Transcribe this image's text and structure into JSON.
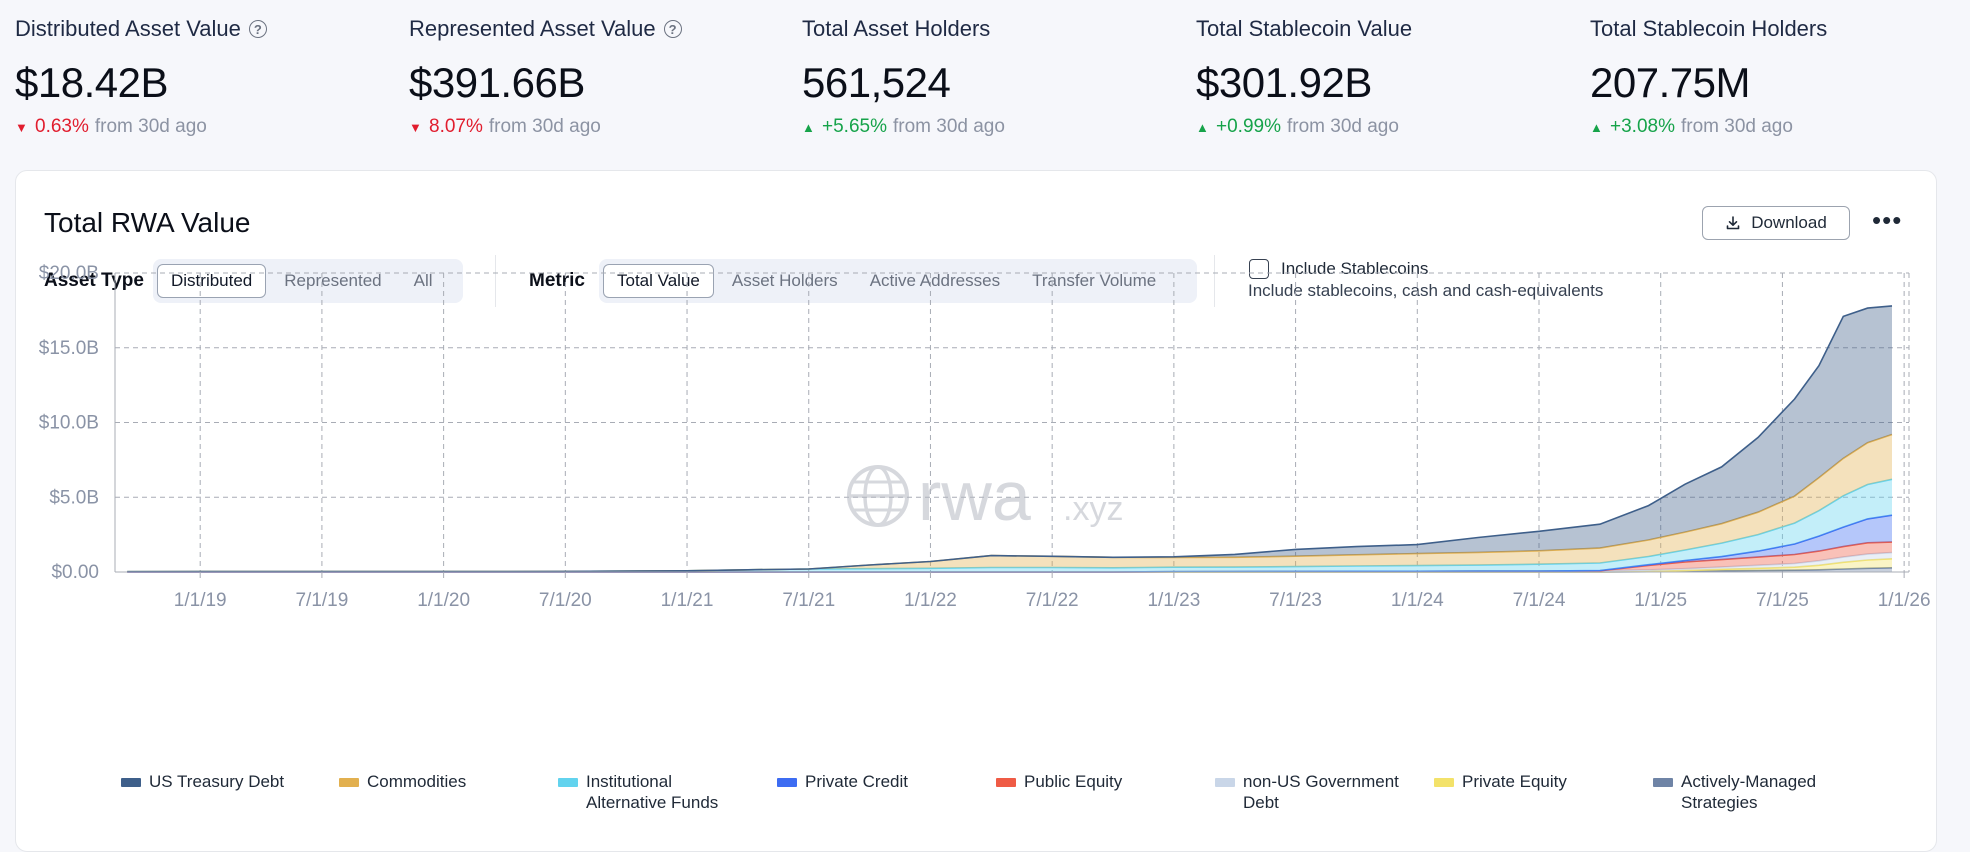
{
  "stats": [
    {
      "title": "Distributed Asset Value",
      "help": true,
      "value": "$18.42B",
      "direction": "down",
      "change": "0.63%",
      "suffix": "from 30d ago"
    },
    {
      "title": "Represented Asset Value",
      "help": true,
      "value": "$391.66B",
      "direction": "down",
      "change": "8.07%",
      "suffix": "from 30d ago"
    },
    {
      "title": "Total Asset Holders",
      "help": false,
      "value": "561,524",
      "direction": "up",
      "change": "+5.65%",
      "suffix": "from 30d ago"
    },
    {
      "title": "Total Stablecoin Value",
      "help": false,
      "value": "$301.92B",
      "direction": "up",
      "change": "+0.99%",
      "suffix": "from 30d ago"
    },
    {
      "title": "Total Stablecoin Holders",
      "help": false,
      "value": "207.75M",
      "direction": "up",
      "change": "+3.08%",
      "suffix": "from 30d ago"
    }
  ],
  "card": {
    "title": "Total RWA Value",
    "download_label": "Download",
    "more_label": "•••"
  },
  "controls": {
    "asset_type_label": "Asset Type",
    "asset_type_options": [
      "Distributed",
      "Represented",
      "All"
    ],
    "asset_type_selected": "Distributed",
    "metric_label": "Metric",
    "metric_options": [
      "Total Value",
      "Asset Holders",
      "Active Addresses",
      "Transfer Volume"
    ],
    "metric_selected": "Total Value",
    "include_stablecoins_label": "Include Stablecoins",
    "include_stablecoins_checked": false,
    "include_stablecoins_desc": "Include stablecoins, cash and cash-equivalents"
  },
  "watermark": {
    "main": "rwa",
    "suffix": ".xyz"
  },
  "colors": {
    "US Treasury Debt": "#3e5f8a",
    "Commodities": "#e2b04f",
    "Institutional Alternative Funds": "#62d3ee",
    "Private Credit": "#3d6cf2",
    "Public Equity": "#ef5b45",
    "non-US Government Debt": "#c9d6e8",
    "Private Equity": "#f3e26a",
    "Actively-Managed Strategies": "#6f84a6"
  },
  "chart_data": {
    "type": "area",
    "stacked": true,
    "title": "Total RWA Value",
    "xlabel": "",
    "ylabel": "",
    "ylim": [
      0,
      20
    ],
    "y_unit": "B USD",
    "y_ticks": [
      "$0.00",
      "$5.0B",
      "$10.0B",
      "$15.0B",
      "$20.0B"
    ],
    "x_ticks": [
      "1/1/19",
      "7/1/19",
      "1/1/20",
      "7/1/20",
      "1/1/21",
      "7/1/21",
      "1/1/22",
      "7/1/22",
      "1/1/23",
      "7/1/23",
      "1/1/24",
      "7/1/24",
      "1/1/25",
      "7/1/25",
      "1/1/26"
    ],
    "x_range": [
      2018.65,
      2026.02
    ],
    "x": [
      2018.7,
      2019.0,
      2019.5,
      2020.0,
      2020.5,
      2021.0,
      2021.25,
      2021.5,
      2021.75,
      2022.0,
      2022.25,
      2022.5,
      2022.75,
      2023.0,
      2023.25,
      2023.5,
      2023.75,
      2024.0,
      2024.25,
      2024.5,
      2024.75,
      2024.95,
      2025.1,
      2025.25,
      2025.4,
      2025.55,
      2025.65,
      2025.75,
      2025.85,
      2025.95
    ],
    "legend_position": "bottom",
    "series": [
      {
        "name": "Actively-Managed Strategies",
        "values": [
          0,
          0,
          0,
          0,
          0,
          0,
          0,
          0,
          0,
          0,
          0,
          0,
          0,
          0,
          0,
          0,
          0,
          0,
          0,
          0,
          0,
          0.02,
          0.05,
          0.08,
          0.1,
          0.12,
          0.15,
          0.2,
          0.25,
          0.28
        ]
      },
      {
        "name": "Private Equity",
        "values": [
          0,
          0,
          0,
          0,
          0,
          0,
          0,
          0,
          0,
          0,
          0,
          0,
          0,
          0,
          0,
          0,
          0,
          0,
          0,
          0,
          0,
          0.02,
          0.05,
          0.1,
          0.15,
          0.2,
          0.3,
          0.45,
          0.55,
          0.6
        ]
      },
      {
        "name": "non-US Government Debt",
        "values": [
          0,
          0,
          0,
          0,
          0,
          0,
          0,
          0,
          0,
          0,
          0,
          0,
          0,
          0.02,
          0.03,
          0.04,
          0.05,
          0.05,
          0.06,
          0.07,
          0.08,
          0.1,
          0.12,
          0.15,
          0.2,
          0.25,
          0.3,
          0.35,
          0.4,
          0.42
        ]
      },
      {
        "name": "Public Equity",
        "values": [
          0,
          0,
          0,
          0,
          0,
          0,
          0,
          0,
          0,
          0,
          0,
          0,
          0,
          0,
          0,
          0,
          0,
          0,
          0,
          0,
          0,
          0.3,
          0.45,
          0.5,
          0.55,
          0.6,
          0.65,
          0.7,
          0.75,
          0.7
        ]
      },
      {
        "name": "Private Credit",
        "values": [
          0,
          0,
          0,
          0,
          0,
          0,
          0,
          0,
          0,
          0,
          0,
          0,
          0,
          0,
          0,
          0,
          0,
          0,
          0,
          0,
          0.02,
          0.05,
          0.1,
          0.2,
          0.4,
          0.7,
          1.0,
          1.3,
          1.6,
          1.8
        ]
      },
      {
        "name": "Institutional Alternative Funds",
        "values": [
          0.02,
          0.03,
          0.03,
          0.03,
          0.04,
          0.08,
          0.15,
          0.2,
          0.22,
          0.25,
          0.3,
          0.3,
          0.28,
          0.3,
          0.3,
          0.32,
          0.35,
          0.38,
          0.4,
          0.45,
          0.5,
          0.55,
          0.7,
          0.9,
          1.1,
          1.4,
          1.7,
          2.1,
          2.3,
          2.4
        ]
      },
      {
        "name": "Commodities",
        "values": [
          0,
          0,
          0,
          0,
          0,
          0,
          0,
          0,
          0.25,
          0.45,
          0.8,
          0.75,
          0.7,
          0.65,
          0.65,
          0.7,
          0.75,
          0.8,
          0.85,
          0.9,
          1.0,
          1.1,
          1.2,
          1.3,
          1.5,
          1.8,
          2.2,
          2.5,
          2.8,
          3.0
        ]
      },
      {
        "name": "US Treasury Debt",
        "values": [
          0,
          0,
          0,
          0,
          0,
          0,
          0,
          0,
          0,
          0,
          0,
          0,
          0,
          0.05,
          0.2,
          0.45,
          0.55,
          0.6,
          1.0,
          1.3,
          1.6,
          2.3,
          3.2,
          3.8,
          5.0,
          6.5,
          7.5,
          9.5,
          9.0,
          8.6
        ]
      }
    ],
    "legend": [
      {
        "name": "US Treasury Debt",
        "label": "US Treasury Debt"
      },
      {
        "name": "Commodities",
        "label": "Commodities"
      },
      {
        "name": "Institutional Alternative Funds",
        "label": "Institutional Alternative Funds"
      },
      {
        "name": "Private Credit",
        "label": "Private Credit"
      },
      {
        "name": "Public Equity",
        "label": "Public Equity"
      },
      {
        "name": "non-US Government Debt",
        "label": "non-US Government Debt"
      },
      {
        "name": "Private Equity",
        "label": "Private Equity"
      },
      {
        "name": "Actively-Managed Strategies",
        "label": "Actively-Managed Strategies"
      }
    ],
    "grid": true
  }
}
